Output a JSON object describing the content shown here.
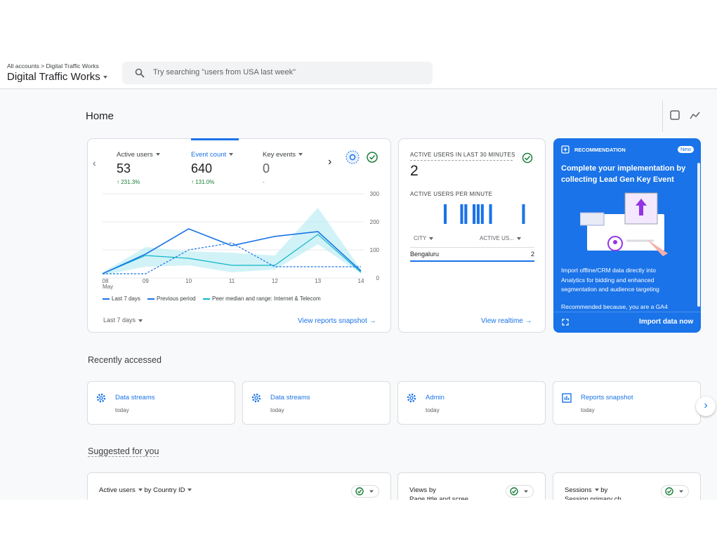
{
  "header": {
    "breadcrumb": [
      "All accounts",
      "Digital Traffic Works"
    ],
    "property": "Digital Traffic Works",
    "search_placeholder": "Try searching \"users from USA last week\""
  },
  "page_title": "Home",
  "overview": {
    "metrics": [
      {
        "label": "Active users",
        "value": 53,
        "change": "231.3%"
      },
      {
        "label": "Event count",
        "value": 640,
        "change": "131.0%"
      },
      {
        "label": "Key events",
        "value": 0,
        "change": "-"
      }
    ],
    "chart": {
      "type": "line",
      "x": [
        "08",
        "09",
        "10",
        "11",
        "12",
        "13",
        "14"
      ],
      "x_month": "May",
      "ylim": [
        0,
        300
      ],
      "yticks": [
        0,
        100,
        200,
        300
      ],
      "grid": true,
      "series": [
        {
          "name": "Last 7 days",
          "color": "#1a73e8",
          "style": "solid",
          "values": [
            15,
            85,
            175,
            115,
            148,
            165,
            25
          ]
        },
        {
          "name": "Previous period",
          "color": "#1a73e8",
          "style": "dashed",
          "values": [
            15,
            15,
            100,
            125,
            40,
            40,
            40
          ]
        },
        {
          "name": "Peer median and range: Internet & Telecom",
          "color": "#12b5cb",
          "style": "solid",
          "values": [
            15,
            80,
            70,
            45,
            45,
            155,
            20
          ],
          "range_low": [
            10,
            40,
            45,
            20,
            30,
            120,
            15
          ],
          "range_high": [
            20,
            110,
            95,
            90,
            80,
            250,
            30
          ]
        }
      ]
    },
    "date_range": "Last 7 days",
    "link": "View reports snapshot"
  },
  "realtime": {
    "title": "ACTIVE USERS IN LAST 30 MINUTES",
    "value": 2,
    "per_minute_title": "ACTIVE USERS PER MINUTE",
    "chart": {
      "type": "bar",
      "color": "#1a73e8",
      "ylim": [
        0,
        1
      ],
      "values": [
        0,
        0,
        0,
        0,
        0,
        0,
        0,
        0,
        1,
        0,
        0,
        0,
        1,
        1,
        0,
        1,
        1,
        1,
        0,
        1,
        0,
        0,
        0,
        0,
        0,
        0,
        0,
        1,
        0,
        0
      ]
    },
    "table": {
      "columns": [
        "CITY",
        "ACTIVE US..."
      ],
      "rows": [
        [
          "Bengaluru",
          2
        ]
      ]
    },
    "link": "View realtime"
  },
  "recommendation": {
    "label": "RECOMMENDATION",
    "badge": "New",
    "title": "Complete your implementation by collecting Lead Gen Key Event",
    "body": "Import offline/CRM data directly into Analytics for bidding and enhanced segmentation and audience targeting",
    "reason": "Recommended because, you are a GA4",
    "action": "Import data now"
  },
  "recently_accessed": {
    "title": "Recently accessed",
    "items": [
      {
        "name": "Data streams",
        "when": "today"
      },
      {
        "name": "Data streams",
        "when": "today"
      },
      {
        "name": "Admin",
        "when": "today"
      },
      {
        "name": "Reports snapshot",
        "when": "today"
      }
    ]
  },
  "suggested": {
    "title": "Suggested for you",
    "cards": [
      {
        "metric": "Active users",
        "by": "by",
        "dimension": "Country ID"
      },
      {
        "metric": "Views",
        "by": "by",
        "dimension": "Page title and scree"
      },
      {
        "metric": "Sessions",
        "by": "by",
        "dimension": "Session primary ch"
      }
    ]
  }
}
